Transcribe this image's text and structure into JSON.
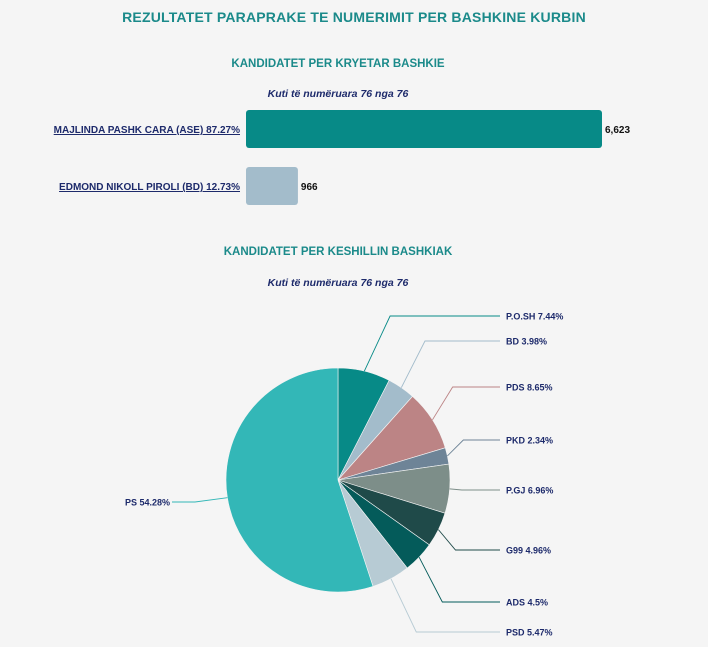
{
  "page": {
    "title": "REZULTATET PARAPRAKE TE NUMERIMIT PER BASHKINE KURBIN"
  },
  "chart_data": [
    {
      "type": "bar",
      "orientation": "horizontal",
      "title": "KANDIDATET PER KRYETAR BASHKIE",
      "subtitle": "Kuti të numëruara 76 nga 76",
      "categories": [
        "MAJLINDA PASHK CARA (ASE) 87.27%",
        "EDMOND NIKOLL PIROLI (BD) 12.73%"
      ],
      "values": [
        6623,
        966
      ],
      "value_labels": [
        "6,623",
        "966"
      ],
      "colors": [
        "#078a87",
        "#a3bccb"
      ],
      "grid": false,
      "legend": "none"
    },
    {
      "type": "pie",
      "title": "KANDIDATET PER KESHILLIN BASHKIAK",
      "subtitle": "Kuti të numëruara 76 nga 76",
      "slices": [
        {
          "label": "P.O.SH 7.44%",
          "value": 7.44,
          "color": "#078a87"
        },
        {
          "label": "BD 3.98%",
          "value": 3.98,
          "color": "#a3bccb"
        },
        {
          "label": "PDS 8.65%",
          "value": 8.65,
          "color": "#bc8485"
        },
        {
          "label": "PKD 2.34%",
          "value": 2.34,
          "color": "#6e8497"
        },
        {
          "label": "P.GJ 6.96%",
          "value": 6.96,
          "color": "#7d8e89"
        },
        {
          "label": "G99 4.96%",
          "value": 4.96,
          "color": "#1f4a49"
        },
        {
          "label": "ADS 4.5%",
          "value": 4.5,
          "color": "#045b5a"
        },
        {
          "label": "PSD 5.47%",
          "value": 5.47,
          "color": "#b7cbd4"
        },
        {
          "label": "PS 54.28%",
          "value": 54.28,
          "color": "#33b7b7"
        }
      ],
      "legend": "none"
    }
  ]
}
